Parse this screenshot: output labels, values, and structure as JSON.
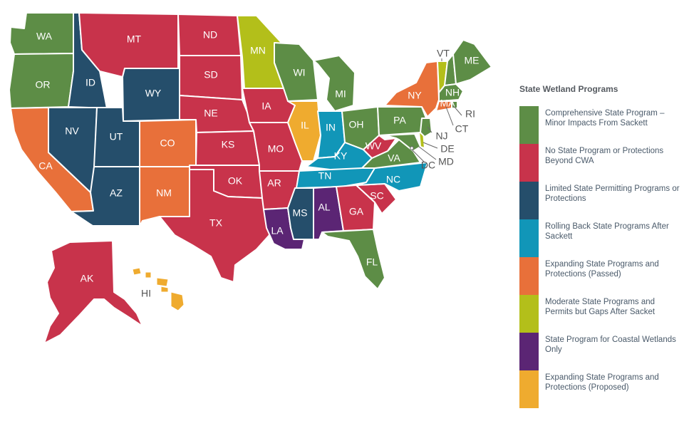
{
  "colors": {
    "green": "#5d8d46",
    "red": "#c8334b",
    "navy": "#254e6b",
    "teal": "#1196b8",
    "orange": "#e8703a",
    "lime": "#b3bf1a",
    "purple": "#5b2574",
    "gold": "#efab2f"
  },
  "legend": {
    "title": "State Wetland Programs",
    "items": [
      {
        "label": "Comprehensive State Program – Minor Impacts From Sackett",
        "color": "#5d8d46"
      },
      {
        "label": "No State Program or Protections Beyond CWA",
        "color": "#c8334b"
      },
      {
        "label": "Limited State Permitting Programs or Protections",
        "color": "#254e6b"
      },
      {
        "label": "Rolling Back State Programs After Sackett",
        "color": "#1196b8"
      },
      {
        "label": "Expanding State Programs and Protections (Passed)",
        "color": "#e8703a"
      },
      {
        "label": "Moderate State Programs and Permits but Gaps After Sacket",
        "color": "#b3bf1a"
      },
      {
        "label": "State Program for Coastal Wetlands Only",
        "color": "#5b2574"
      },
      {
        "label": "Expanding State Programs and Protections (Proposed)",
        "color": "#efab2f"
      }
    ]
  },
  "states": {
    "WA": {
      "label": "WA",
      "category": "green"
    },
    "OR": {
      "label": "OR",
      "category": "green"
    },
    "CA": {
      "label": "CA",
      "category": "orange"
    },
    "ID": {
      "label": "ID",
      "category": "navy"
    },
    "NV": {
      "label": "NV",
      "category": "navy"
    },
    "UT": {
      "label": "UT",
      "category": "navy"
    },
    "AZ": {
      "label": "AZ",
      "category": "navy"
    },
    "MT": {
      "label": "MT",
      "category": "red"
    },
    "WY": {
      "label": "WY",
      "category": "navy"
    },
    "CO": {
      "label": "CO",
      "category": "orange"
    },
    "NM": {
      "label": "NM",
      "category": "orange"
    },
    "ND": {
      "label": "ND",
      "category": "red"
    },
    "SD": {
      "label": "SD",
      "category": "red"
    },
    "NE": {
      "label": "NE",
      "category": "red"
    },
    "KS": {
      "label": "KS",
      "category": "red"
    },
    "OK": {
      "label": "OK",
      "category": "red"
    },
    "TX": {
      "label": "TX",
      "category": "red"
    },
    "MN": {
      "label": "MN",
      "category": "lime"
    },
    "IA": {
      "label": "IA",
      "category": "red"
    },
    "MO": {
      "label": "MO",
      "category": "red"
    },
    "AR": {
      "label": "AR",
      "category": "red"
    },
    "LA": {
      "label": "LA",
      "category": "purple"
    },
    "WI": {
      "label": "WI",
      "category": "green"
    },
    "IL": {
      "label": "IL",
      "category": "gold"
    },
    "MI": {
      "label": "MI",
      "category": "green"
    },
    "IN": {
      "label": "IN",
      "category": "teal"
    },
    "OH": {
      "label": "OH",
      "category": "green"
    },
    "KY": {
      "label": "KY",
      "category": "teal"
    },
    "TN": {
      "label": "TN",
      "category": "teal"
    },
    "MS": {
      "label": "MS",
      "category": "navy"
    },
    "AL": {
      "label": "AL",
      "category": "purple"
    },
    "GA": {
      "label": "GA",
      "category": "red"
    },
    "FL": {
      "label": "FL",
      "category": "green"
    },
    "SC": {
      "label": "SC",
      "category": "red"
    },
    "NC": {
      "label": "NC",
      "category": "teal"
    },
    "VA": {
      "label": "VA",
      "category": "green"
    },
    "WV": {
      "label": "WV",
      "category": "red"
    },
    "PA": {
      "label": "PA",
      "category": "green"
    },
    "NY": {
      "label": "NY",
      "category": "orange"
    },
    "VT": {
      "label": "VT",
      "category": "lime"
    },
    "NH": {
      "label": "NH",
      "category": "green"
    },
    "ME": {
      "label": "ME",
      "category": "green"
    },
    "MA": {
      "label": "MA",
      "category": "green"
    },
    "RI": {
      "label": "RI",
      "category": "green"
    },
    "CT": {
      "label": "CT",
      "category": "orange"
    },
    "NJ": {
      "label": "NJ",
      "category": "green"
    },
    "DE": {
      "label": "DE",
      "category": "lime"
    },
    "MD": {
      "label": "MD",
      "category": "green"
    },
    "DC": {
      "label": "DC",
      "category": "green"
    },
    "AK": {
      "label": "AK",
      "category": "red"
    },
    "HI": {
      "label": "HI",
      "category": "gold"
    }
  }
}
